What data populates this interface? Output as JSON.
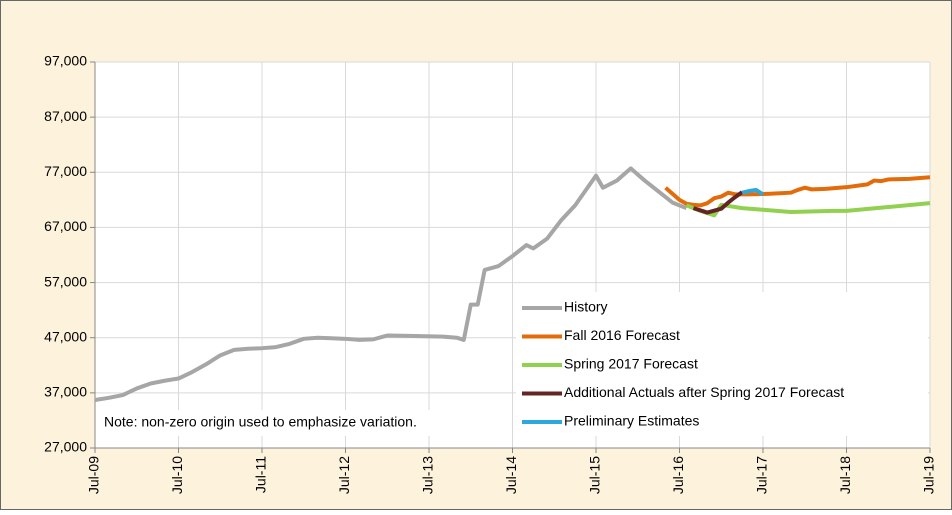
{
  "chart_data": {
    "type": "line",
    "annotation": "Note: non-zero origin used to emphasize variation.",
    "ylim": [
      27000,
      97000
    ],
    "yticks": [
      {
        "value": 27000,
        "label": "27,000"
      },
      {
        "value": 37000,
        "label": "37,000"
      },
      {
        "value": 47000,
        "label": "47,000"
      },
      {
        "value": 57000,
        "label": "57,000"
      },
      {
        "value": 67000,
        "label": "67,000"
      },
      {
        "value": 77000,
        "label": "77,000"
      },
      {
        "value": 87000,
        "label": "87,000"
      },
      {
        "value": 97000,
        "label": "97,000"
      }
    ],
    "xticks": [
      "Jul-09",
      "Jul-10",
      "Jul-11",
      "Jul-12",
      "Jul-13",
      "Jul-14",
      "Jul-15",
      "Jul-16",
      "Jul-17",
      "Jul-18",
      "Jul-19"
    ],
    "grid": true,
    "series": [
      {
        "name": "History",
        "color": "#a6a6a6",
        "x": [
          "Jul-09",
          "Sep-09",
          "Nov-09",
          "Jan-10",
          "Mar-10",
          "May-10",
          "Jul-10",
          "Sep-10",
          "Nov-10",
          "Jan-11",
          "Mar-11",
          "May-11",
          "Jul-11",
          "Sep-11",
          "Nov-11",
          "Jan-12",
          "Mar-12",
          "May-12",
          "Jul-12",
          "Sep-12",
          "Nov-12",
          "Jan-13",
          "May-13",
          "Sep-13",
          "Nov-13",
          "Dec-13",
          "Jan-14",
          "Feb-14",
          "Mar-14",
          "May-14",
          "Jul-14",
          "Sep-14",
          "Oct-14",
          "Dec-14",
          "Feb-15",
          "Apr-15",
          "Jun-15",
          "Jul-15",
          "Aug-15",
          "Oct-15",
          "Dec-15",
          "Feb-16",
          "Apr-16",
          "Jun-16",
          "Aug-16"
        ],
        "values": [
          35700,
          36100,
          36600,
          37800,
          38700,
          39200,
          39600,
          40800,
          42200,
          43800,
          44800,
          45000,
          45100,
          45300,
          45900,
          46800,
          47000,
          46900,
          46800,
          46600,
          46700,
          47400,
          47300,
          47200,
          47000,
          46600,
          53000,
          53000,
          59300,
          60000,
          61800,
          63800,
          63200,
          65000,
          68300,
          71000,
          74600,
          76400,
          74200,
          75500,
          77700,
          75500,
          73500,
          71500,
          70500
        ]
      },
      {
        "name": "Fall 2016 Forecast",
        "color": "#e36c0a",
        "x": [
          "May-16",
          "Jul-16",
          "Aug-16",
          "Sep-16",
          "Oct-16",
          "Nov-16",
          "Dec-16",
          "Jan-17",
          "Feb-17",
          "Mar-17",
          "May-17",
          "Aug-17",
          "Nov-17",
          "Dec-17",
          "Jan-18",
          "Feb-18",
          "Apr-18",
          "Jul-18",
          "Oct-18",
          "Nov-18",
          "Dec-18",
          "Jan-19",
          "Apr-19",
          "Jul-19"
        ],
        "values": [
          74200,
          72000,
          71300,
          71100,
          71000,
          71400,
          72300,
          72600,
          73300,
          73000,
          73000,
          73100,
          73300,
          73800,
          74200,
          73900,
          74000,
          74300,
          74800,
          75500,
          75400,
          75700,
          75800,
          76100
        ]
      },
      {
        "name": "Spring 2017 Forecast",
        "color": "#92d050",
        "x": [
          "Aug-16",
          "Oct-16",
          "Nov-16",
          "Dec-16",
          "Jan-17",
          "Apr-17",
          "Jul-17",
          "Nov-17",
          "May-18",
          "Jul-18",
          "Jan-19",
          "Jul-19"
        ],
        "values": [
          71000,
          70000,
          69600,
          69200,
          71100,
          70500,
          70200,
          69800,
          70000,
          70000,
          70700,
          71400
        ]
      },
      {
        "name": "Additional Actuals after Spring 2017 Forecast",
        "color": "#632523",
        "x": [
          "Sep-16",
          "Nov-16",
          "Jan-17",
          "Feb-17",
          "Mar-17",
          "Apr-17"
        ],
        "values": [
          70500,
          69700,
          70400,
          71500,
          72500,
          73400
        ]
      },
      {
        "name": "Preliminary Estimates",
        "color": "#2ea8dc",
        "x": [
          "Apr-17",
          "May-17",
          "Jun-17",
          "Jul-17"
        ],
        "values": [
          73300,
          73600,
          73800,
          73000
        ]
      }
    ]
  }
}
